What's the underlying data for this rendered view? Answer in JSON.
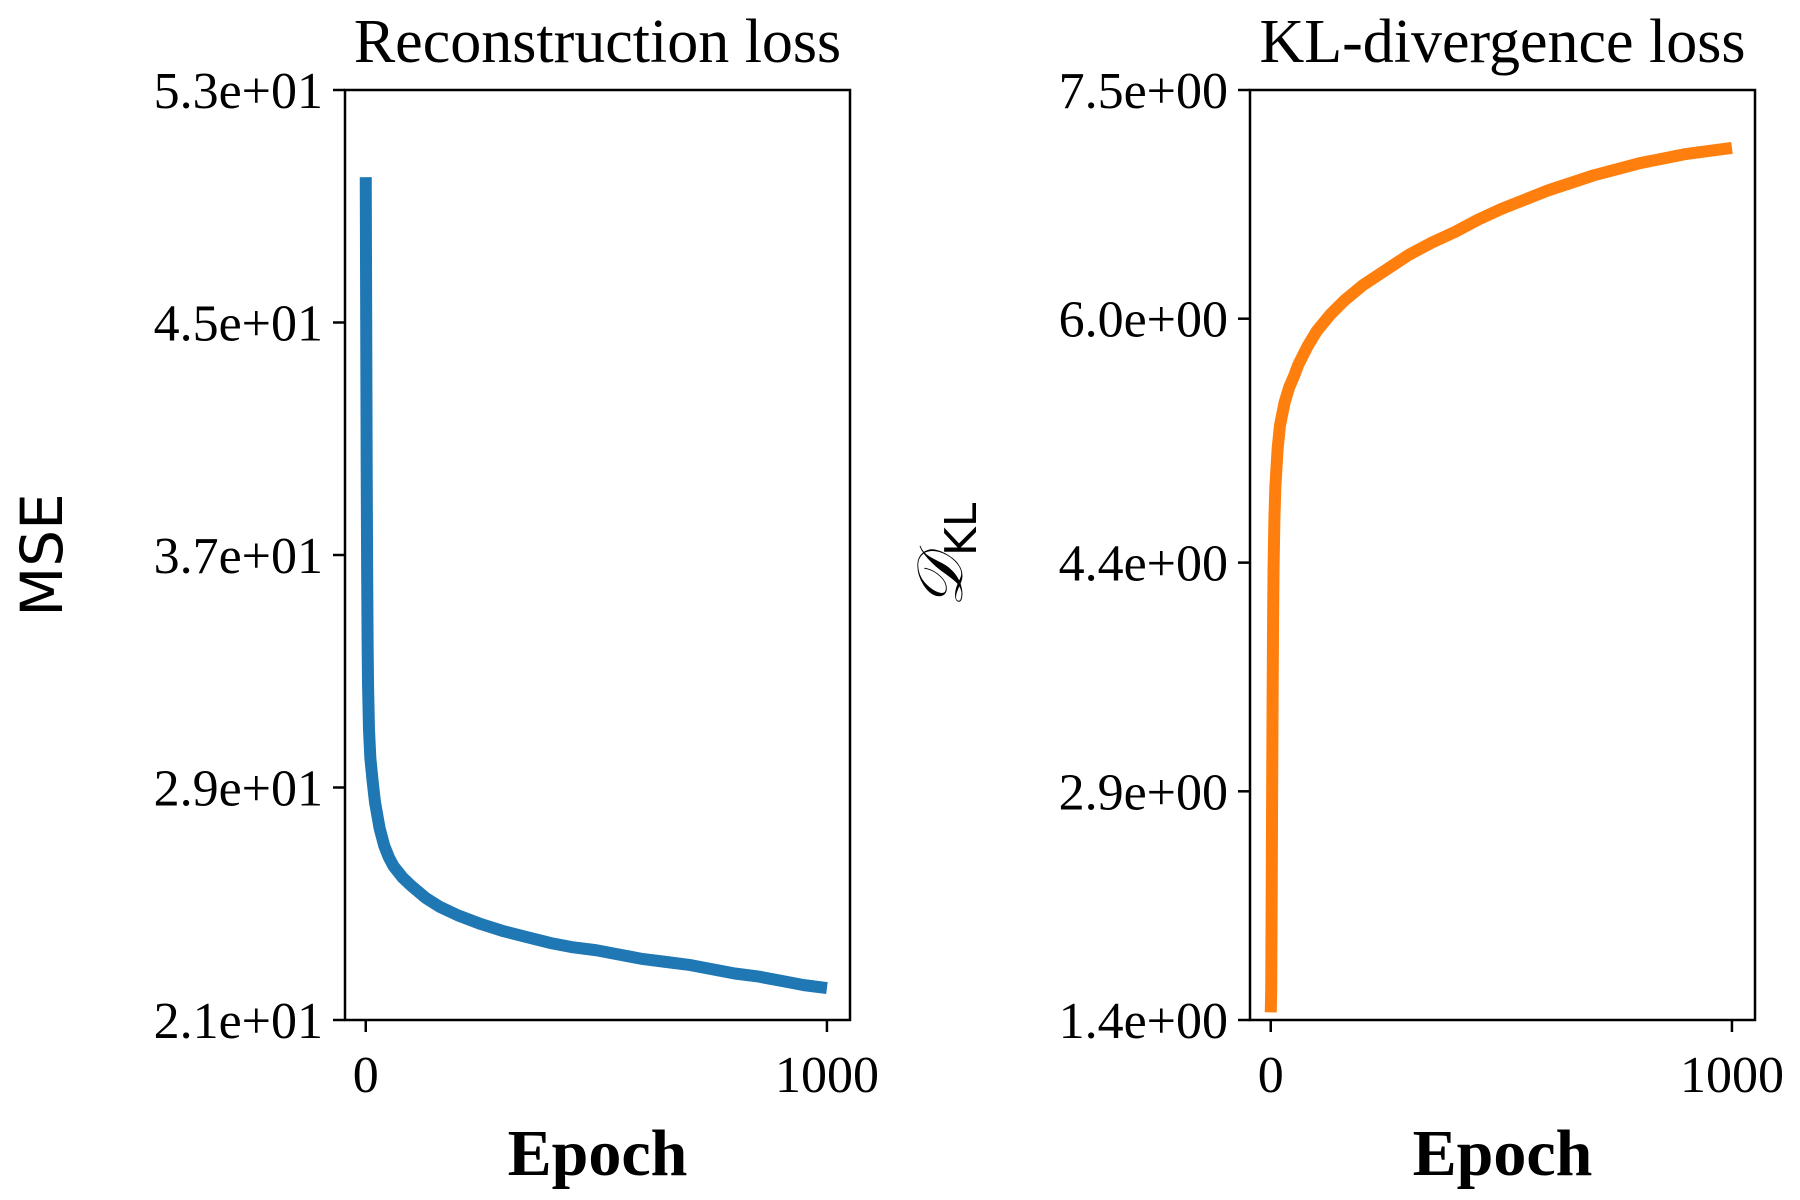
{
  "chart_data": [
    {
      "type": "line",
      "title": "Reconstruction loss",
      "xlabel": "Epoch",
      "ylabel": "MSE",
      "xlim": [
        -45,
        1050
      ],
      "ylim": [
        21,
        53
      ],
      "xticks": [
        0,
        1000
      ],
      "xtick_labels": [
        "0",
        "1000"
      ],
      "yticks": [
        21,
        29,
        37,
        45,
        53
      ],
      "ytick_labels": [
        "2.1e+01",
        "2.9e+01",
        "3.7e+01",
        "4.5e+01",
        "5.3e+01"
      ],
      "grid": false,
      "color": "#1f77b4",
      "series": [
        {
          "x": [
            0,
            1,
            2,
            3,
            4,
            5,
            7,
            10,
            15,
            20,
            30,
            40,
            50,
            60,
            80,
            100,
            130,
            160,
            200,
            250,
            300,
            350,
            400,
            450,
            500,
            550,
            600,
            650,
            700,
            750,
            800,
            850,
            900,
            950,
            1000
          ],
          "y": [
            50.0,
            45.0,
            40.0,
            36.5,
            34.0,
            32.5,
            31.0,
            30.0,
            29.2,
            28.5,
            27.6,
            27.0,
            26.6,
            26.3,
            25.9,
            25.6,
            25.2,
            24.9,
            24.6,
            24.3,
            24.05,
            23.85,
            23.65,
            23.5,
            23.4,
            23.25,
            23.1,
            23.0,
            22.9,
            22.75,
            22.6,
            22.5,
            22.35,
            22.2,
            22.1
          ]
        }
      ]
    },
    {
      "type": "line",
      "title": "KL-divergence loss",
      "xlabel": "Epoch",
      "ylabel": "𝒟",
      "ylabel_sub": "KL",
      "xlim": [
        -45,
        1050
      ],
      "ylim": [
        1.4,
        7.5
      ],
      "xticks": [
        0,
        1000
      ],
      "xtick_labels": [
        "0",
        "1000"
      ],
      "yticks": [
        1.4,
        2.9,
        4.4,
        6.0,
        7.5
      ],
      "ytick_labels": [
        "1.4e+00",
        "2.9e+00",
        "4.4e+00",
        "6.0e+00",
        "7.5e+00"
      ],
      "grid": false,
      "color": "#ff7f0e",
      "series": [
        {
          "x": [
            0,
            1,
            2,
            3,
            4,
            5,
            6,
            8,
            10,
            15,
            20,
            30,
            40,
            50,
            60,
            80,
            100,
            130,
            160,
            200,
            250,
            300,
            350,
            400,
            450,
            500,
            550,
            600,
            650,
            700,
            750,
            800,
            850,
            900,
            950,
            1000
          ],
          "y": [
            1.45,
            1.6,
            2.2,
            2.9,
            3.5,
            4.0,
            4.35,
            4.7,
            4.9,
            5.15,
            5.3,
            5.45,
            5.55,
            5.62,
            5.7,
            5.82,
            5.92,
            6.03,
            6.12,
            6.22,
            6.32,
            6.42,
            6.5,
            6.57,
            6.65,
            6.72,
            6.78,
            6.84,
            6.89,
            6.94,
            6.98,
            7.02,
            7.05,
            7.08,
            7.1,
            7.12
          ]
        }
      ]
    }
  ]
}
